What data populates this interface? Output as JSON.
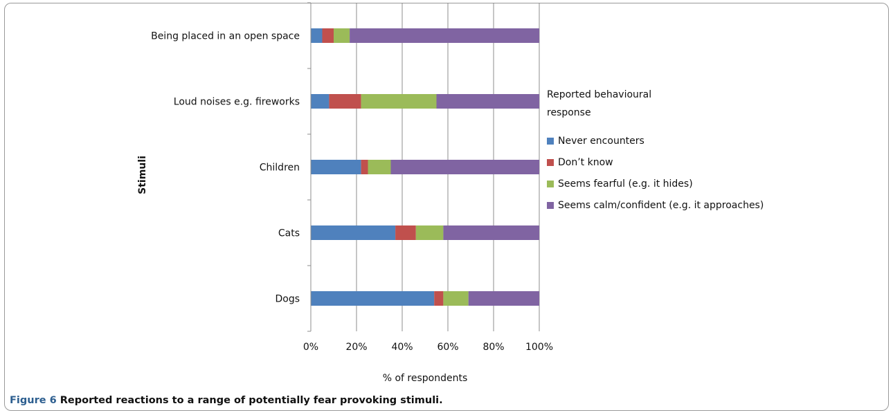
{
  "chart_data": {
    "type": "bar",
    "orientation": "horizontal",
    "stacked": "percent",
    "categories": [
      "Being placed in an open space",
      "Loud noises  e.g. fireworks",
      "Children",
      "Cats",
      "Dogs"
    ],
    "series": [
      {
        "name": "Never encounters",
        "color": "#4f81bd",
        "values": [
          5,
          8,
          22,
          37,
          54
        ]
      },
      {
        "name": "Don’t know",
        "color": "#c0504d",
        "values": [
          5,
          14,
          3,
          9,
          4
        ]
      },
      {
        "name": "Seems fearful  (e.g. it hides)",
        "color": "#9bbb59",
        "values": [
          7,
          33,
          10,
          12,
          11
        ]
      },
      {
        "name": "Seems calm/confident  (e.g. it approaches)",
        "color": "#8064a2",
        "values": [
          83,
          45,
          65,
          42,
          31
        ]
      }
    ],
    "xlabel": "% of respondents",
    "ylabel": "Stimuli",
    "xlim": [
      0,
      100
    ],
    "xticks": [
      "0%",
      "20%",
      "40%",
      "60%",
      "80%",
      "100%"
    ],
    "grid": "vertical",
    "legend": {
      "title": "Reported behavioural response",
      "placement": "right"
    }
  },
  "figure": {
    "caption_label": "Figure 6",
    "caption_text": " Reported reactions to a range of potentially fear provoking stimuli."
  }
}
